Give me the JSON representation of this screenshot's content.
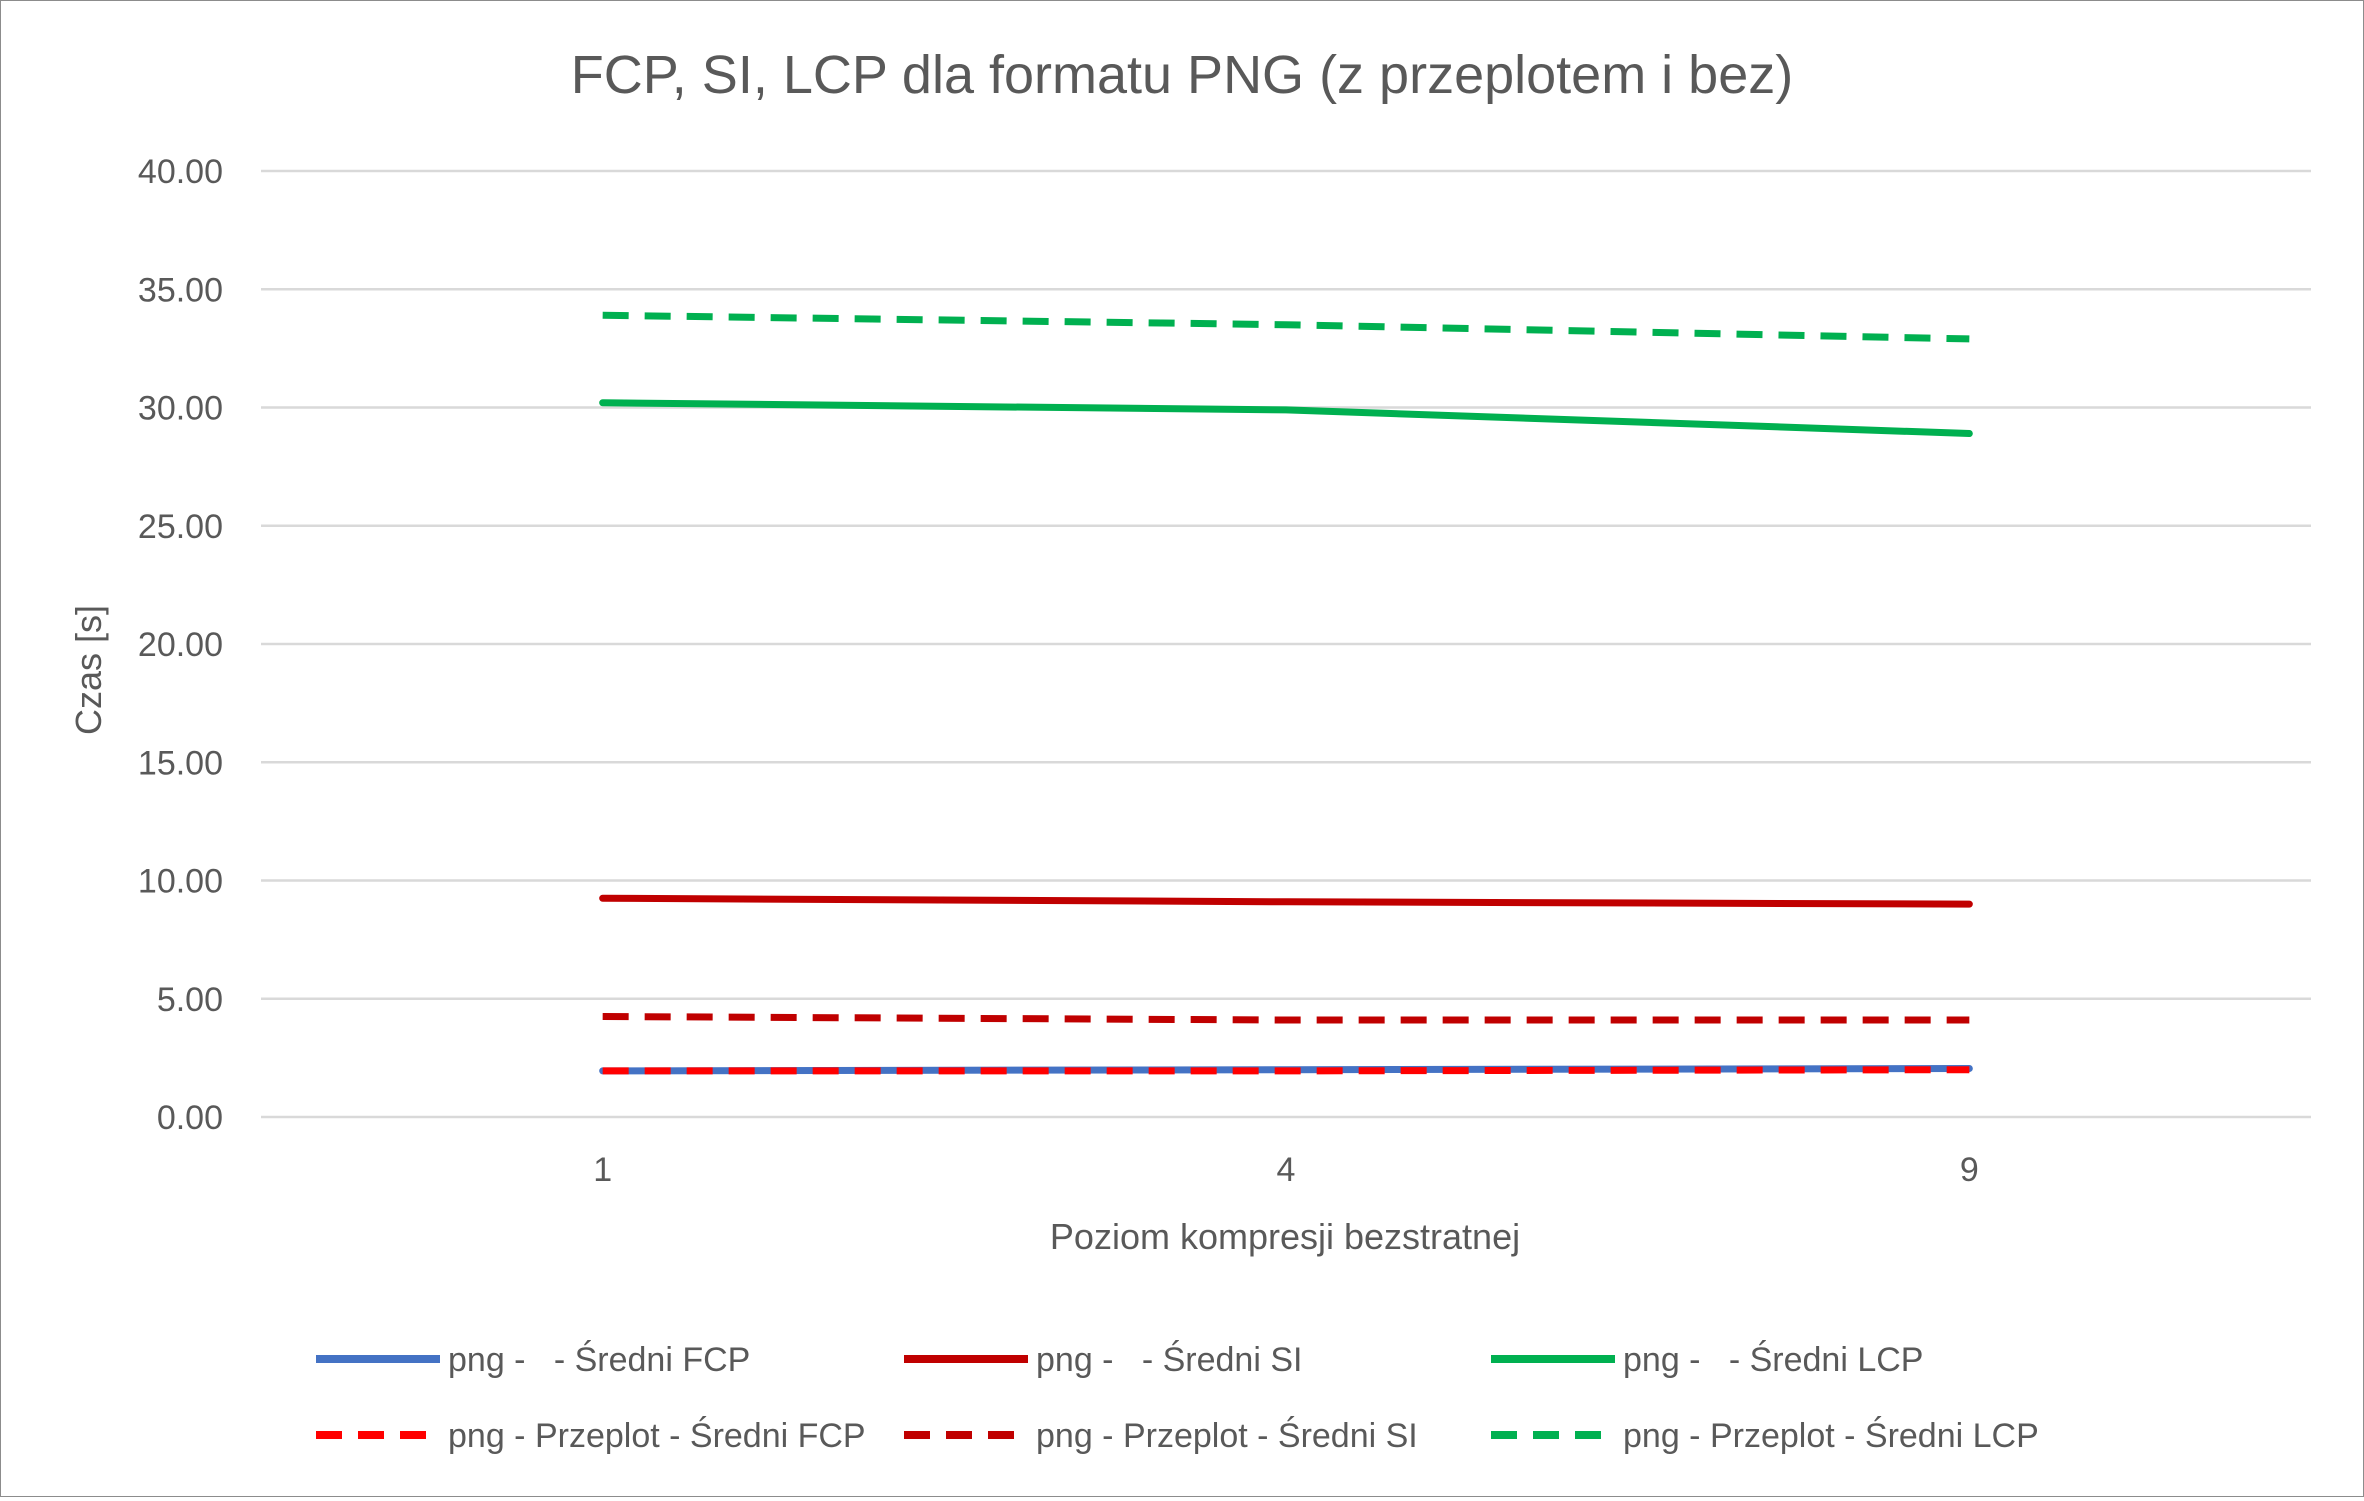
{
  "chart_data": {
    "type": "line",
    "title": "FCP, SI, LCP dla formatu PNG (z przeplotem i bez)",
    "xlabel": "Poziom kompresji bezstratnej",
    "ylabel": "Czas [s]",
    "categories": [
      "1",
      "4",
      "9"
    ],
    "ylim": [
      0,
      40
    ],
    "yticks": [
      "0.00",
      "5.00",
      "10.00",
      "15.00",
      "20.00",
      "25.00",
      "30.00",
      "35.00",
      "40.00"
    ],
    "grid": true,
    "legend_position": "bottom",
    "series": [
      {
        "name": "png -   - Średni FCP",
        "values": [
          1.95,
          2.0,
          2.05
        ],
        "color": "#4472c4",
        "dashed": false
      },
      {
        "name": "png -   - Średni SI",
        "values": [
          9.25,
          9.1,
          9.0
        ],
        "color": "#c00000",
        "dashed": false
      },
      {
        "name": "png -   - Średni LCP",
        "values": [
          30.2,
          29.9,
          28.9
        ],
        "color": "#00b050",
        "dashed": false
      },
      {
        "name": "png - Przeplot - Średni FCP",
        "values": [
          1.95,
          1.95,
          2.0
        ],
        "color": "#ff0000",
        "dashed": true
      },
      {
        "name": "png - Przeplot - Średni SI",
        "values": [
          4.25,
          4.1,
          4.1
        ],
        "color": "#c00000",
        "dashed": true
      },
      {
        "name": "png - Przeplot - Średni LCP",
        "values": [
          33.9,
          33.5,
          32.9
        ],
        "color": "#00b050",
        "dashed": true
      }
    ]
  }
}
